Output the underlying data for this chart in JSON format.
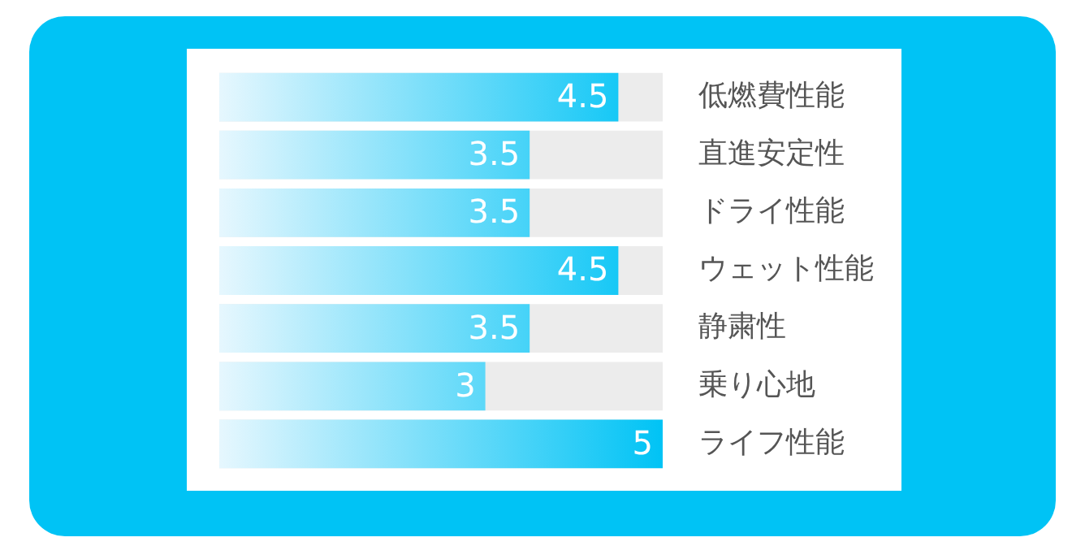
{
  "chart_data": {
    "type": "bar",
    "orientation": "horizontal",
    "categories": [
      "低燃費性能",
      "直進安定性",
      "ドライ性能",
      "ウェット性能",
      "静粛性",
      "乗り心地",
      "ライフ性能"
    ],
    "values": [
      4.5,
      3.5,
      3.5,
      4.5,
      3.5,
      3,
      5
    ],
    "color": "#00c3f5",
    "xlim": [
      0,
      5
    ],
    "tick_labels": "y",
    "data_labels": true
  }
}
